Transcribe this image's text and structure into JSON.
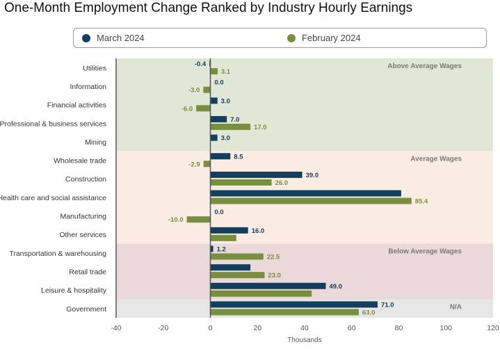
{
  "colors": {
    "march": "#133f5e",
    "february": "#788f3f",
    "band_above": "#e1e6d6",
    "band_average": "#fbece3",
    "band_below": "#ebd8d8",
    "band_na": "#e6e6e6"
  },
  "chart_data": {
    "type": "bar",
    "orientation": "horizontal",
    "title": "One-Month Employment Change Ranked by Industry Hourly Earnings",
    "xlabel": "Thousands",
    "ylabel": "",
    "xlim": [
      -40,
      120
    ],
    "xticks": [
      -40,
      -20,
      0,
      20,
      40,
      60,
      80,
      100,
      120
    ],
    "grid": false,
    "legend_position": "top",
    "categories": [
      "Utilities",
      "Information",
      "Financial activities",
      "Professional & business services",
      "Mining",
      "Wholesale trade",
      "Construction",
      "Health care and social assistance",
      "Manufacturing",
      "Other services",
      "Transportation & warehousing",
      "Retail trade",
      "Leisure & hospitality",
      "Government"
    ],
    "series": [
      {
        "name": "March 2024",
        "values": [
          -0.4,
          0.0,
          3.0,
          7.0,
          3.0,
          8.5,
          39.0,
          81.0,
          0.0,
          16.0,
          1.2,
          17.0,
          49.0,
          71.0
        ],
        "labels": [
          "-0.4",
          "0.0",
          "3.0",
          "7.0",
          "3.0",
          "8.5",
          "39.0",
          "",
          "0.0",
          "16.0",
          "1.2",
          "",
          "49.0",
          "71.0"
        ]
      },
      {
        "name": "February 2024",
        "values": [
          3.1,
          -3.0,
          -6.0,
          17.0,
          null,
          -2.9,
          26.0,
          85.4,
          -10.0,
          11.0,
          22.5,
          23.0,
          43.0,
          63.0
        ],
        "labels": [
          "3.1",
          "-3.0",
          "-6.0",
          "17.0",
          "",
          "-2.9",
          "26.0",
          "85.4",
          "-10.0",
          "",
          "22.5",
          "23.0",
          "",
          "63.0"
        ]
      }
    ],
    "bands": [
      {
        "label": "Above Average Wages",
        "first": 0,
        "last": 4,
        "color_key": "band_above"
      },
      {
        "label": "Average Wages",
        "first": 5,
        "last": 9,
        "color_key": "band_average"
      },
      {
        "label": "Below Average Wages",
        "first": 10,
        "last": 12,
        "color_key": "band_below"
      },
      {
        "label": "N/A",
        "first": 13,
        "last": 13,
        "color_key": "band_na"
      }
    ]
  }
}
